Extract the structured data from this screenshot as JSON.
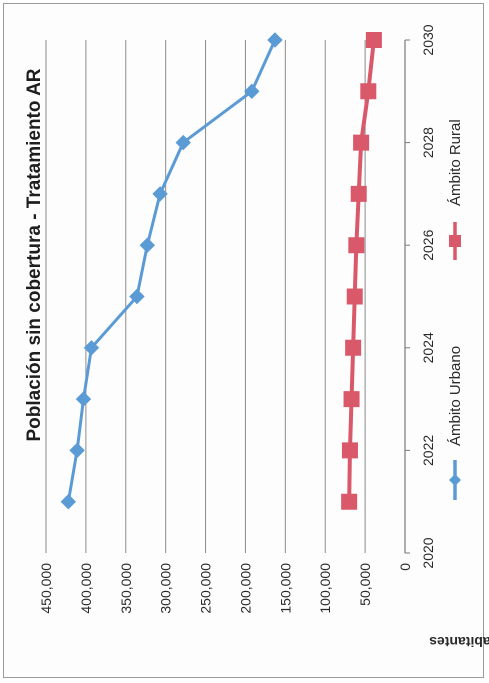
{
  "chart_data": {
    "type": "line",
    "title": "Población sin cobertura - Tratamiento AR",
    "ylabel": "Habitantes",
    "xlabel": "",
    "x": [
      2021,
      2022,
      2023,
      2024,
      2025,
      2026,
      2027,
      2028,
      2029,
      2030
    ],
    "xlim": [
      2020,
      2030
    ],
    "xticks": [
      2020,
      2022,
      2024,
      2026,
      2028,
      2030
    ],
    "ylim": [
      0,
      450000
    ],
    "yticks": [
      0,
      50000,
      100000,
      150000,
      200000,
      250000,
      300000,
      350000,
      400000,
      450000
    ],
    "ytick_labels": [
      "0",
      "50,000",
      "100,000",
      "150,000",
      "200,000",
      "250,000",
      "300,000",
      "350,000",
      "400,000",
      "450,000"
    ],
    "grid": true,
    "legend_position": "bottom",
    "orientation": "rotated 90° counter-clockwise",
    "series": [
      {
        "name": "Ámbito Urbano",
        "color": "#5b9bd5",
        "marker": "diamond",
        "values": [
          422000,
          411000,
          403000,
          393000,
          336000,
          323000,
          307000,
          278000,
          192000,
          163000
        ]
      },
      {
        "name": "Ámbito Rural",
        "color": "#d9596a",
        "marker": "square",
        "values": [
          70000,
          69000,
          67000,
          65000,
          63000,
          61000,
          58000,
          55000,
          46000,
          39000
        ]
      }
    ]
  }
}
